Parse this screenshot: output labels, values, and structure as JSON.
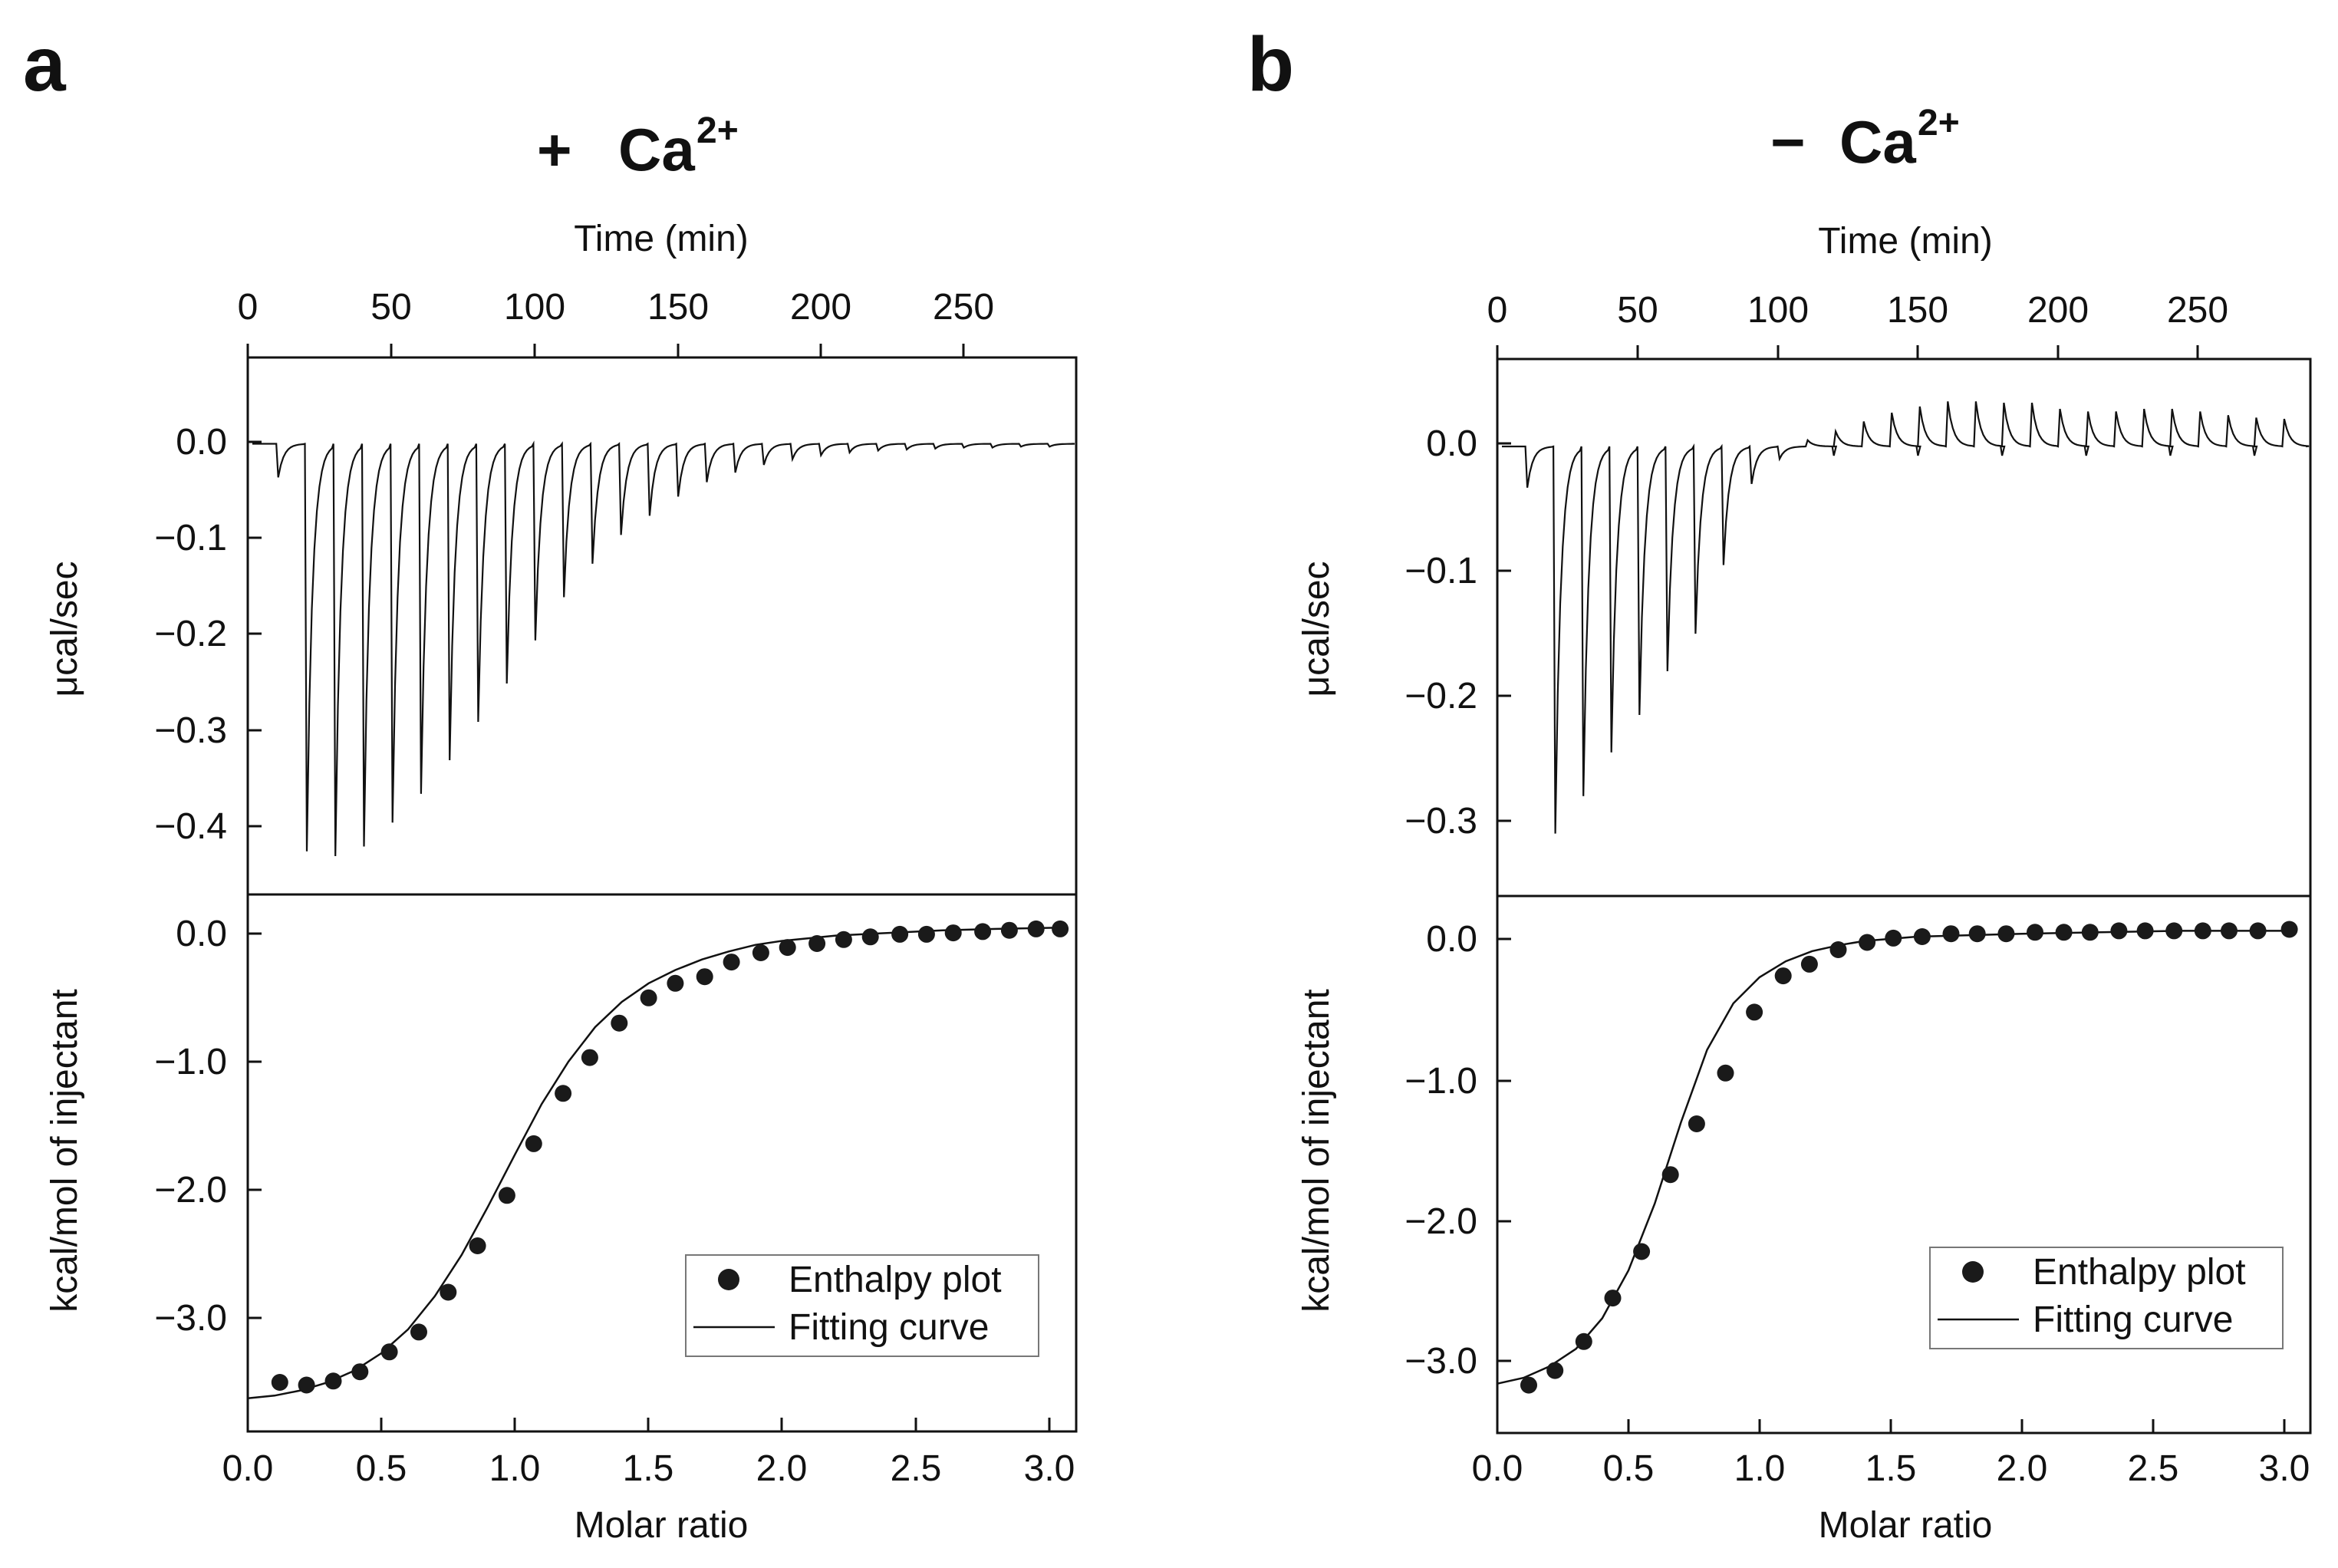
{
  "figure": {
    "colors": {
      "ink": "#111111",
      "background": "#ffffff",
      "marker": "#1a1a1a"
    },
    "panels": [
      {
        "letter": "a",
        "condition": {
          "sign": "+",
          "ion": "Ca",
          "superscript": "2+"
        },
        "top": {
          "xlabel": "Time (min)",
          "ylabel": "μcal/sec",
          "xticks": [
            "0",
            "50",
            "100",
            "150",
            "200",
            "250"
          ],
          "yticks": [
            "0.0",
            "−0.1",
            "−0.2",
            "−0.3",
            "−0.4"
          ]
        },
        "bottom": {
          "xlabel": "Molar ratio",
          "ylabel": "kcal/mol of injectant",
          "xticks": [
            "0.0",
            "0.5",
            "1.0",
            "1.5",
            "2.0",
            "2.5",
            "3.0"
          ],
          "yticks": [
            "0.0",
            "−1.0",
            "−2.0",
            "−3.0"
          ]
        },
        "legend": {
          "points_label": "Enthalpy plot",
          "curve_label": "Fitting curve"
        }
      },
      {
        "letter": "b",
        "condition": {
          "sign": "−",
          "ion": "Ca",
          "superscript": "2+"
        },
        "top": {
          "xlabel": "Time (min)",
          "ylabel": "μcal/sec",
          "xticks": [
            "0",
            "50",
            "100",
            "150",
            "200",
            "250"
          ],
          "yticks": [
            "0.0",
            "−0.1",
            "−0.2",
            "−0.3"
          ]
        },
        "bottom": {
          "xlabel": "Molar ratio",
          "ylabel": "kcal/mol of injectant",
          "xticks": [
            "0.0",
            "0.5",
            "1.0",
            "1.5",
            "2.0",
            "2.5",
            "3.0"
          ],
          "yticks": [
            "0.0",
            "−1.0",
            "−2.0",
            "−3.0"
          ]
        },
        "legend": {
          "points_label": "Enthalpy plot",
          "curve_label": "Fitting curve"
        }
      }
    ]
  },
  "chart_data": [
    {
      "panel": "a",
      "plot": "raw thermogram",
      "type": "line",
      "xlabel": "Time (min)",
      "ylabel": "μcal/sec",
      "xlim": [
        0,
        290
      ],
      "ylim": [
        -0.47,
        0.09
      ],
      "grid": false,
      "injections": {
        "time": [
          10,
          20,
          30,
          40,
          50,
          60,
          70,
          80,
          90,
          100,
          110,
          120,
          130,
          140,
          150,
          160,
          170,
          180,
          190,
          200,
          210,
          220,
          230,
          240,
          250,
          260,
          270,
          280
        ],
        "peak": [
          -0.035,
          -0.425,
          -0.43,
          -0.42,
          -0.395,
          -0.365,
          -0.33,
          -0.29,
          -0.25,
          -0.205,
          -0.16,
          -0.125,
          -0.095,
          -0.075,
          -0.055,
          -0.04,
          -0.03,
          -0.022,
          -0.016,
          -0.012,
          -0.009,
          -0.007,
          -0.006,
          -0.005,
          -0.004,
          -0.004,
          -0.003,
          -0.003
        ]
      }
    },
    {
      "panel": "a",
      "plot": "integrated heats",
      "type": "scatter",
      "xlabel": "Molar ratio",
      "ylabel": "kcal/mol of injectant",
      "xlim": [
        0,
        3.1
      ],
      "ylim": [
        -3.85,
        0.2
      ],
      "legend_position": "bottom-right",
      "series": [
        {
          "name": "Enthalpy plot",
          "x": [
            0.12,
            0.22,
            0.32,
            0.42,
            0.53,
            0.64,
            0.75,
            0.86,
            0.97,
            1.07,
            1.18,
            1.28,
            1.39,
            1.5,
            1.6,
            1.71,
            1.81,
            1.92,
            2.02,
            2.13,
            2.23,
            2.33,
            2.44,
            2.54,
            2.64,
            2.75,
            2.85,
            2.95,
            3.04
          ],
          "y": [
            -3.48,
            -3.5,
            -3.47,
            -3.4,
            -3.25,
            -3.1,
            -2.8,
            -2.45,
            -2.07,
            -1.68,
            -1.3,
            -1.03,
            -0.77,
            -0.58,
            -0.47,
            -0.42,
            -0.31,
            -0.24,
            -0.2,
            -0.17,
            -0.14,
            -0.12,
            -0.1,
            -0.1,
            -0.09,
            -0.08,
            -0.07,
            -0.06,
            -0.06
          ]
        },
        {
          "name": "Fitting curve",
          "type": "line",
          "x": [
            0.0,
            0.1,
            0.2,
            0.3,
            0.4,
            0.5,
            0.6,
            0.7,
            0.8,
            0.9,
            1.0,
            1.1,
            1.2,
            1.3,
            1.4,
            1.5,
            1.6,
            1.7,
            1.8,
            1.9,
            2.0,
            2.2,
            2.4,
            2.6,
            2.8,
            3.04
          ],
          "y": [
            -3.6,
            -3.58,
            -3.54,
            -3.48,
            -3.39,
            -3.26,
            -3.08,
            -2.83,
            -2.52,
            -2.15,
            -1.76,
            -1.38,
            -1.06,
            -0.8,
            -0.61,
            -0.47,
            -0.37,
            -0.29,
            -0.23,
            -0.18,
            -0.15,
            -0.11,
            -0.09,
            -0.07,
            -0.06,
            -0.05
          ]
        }
      ]
    },
    {
      "panel": "b",
      "plot": "raw thermogram",
      "type": "line",
      "xlabel": "Time (min)",
      "ylabel": "μcal/sec",
      "xlim": [
        0,
        290
      ],
      "ylim": [
        -0.36,
        0.07
      ],
      "grid": false,
      "injections": {
        "time": [
          10,
          20,
          30,
          40,
          50,
          60,
          70,
          80,
          90,
          100,
          110,
          120,
          130,
          140,
          150,
          160,
          170,
          180,
          190,
          200,
          210,
          220,
          230,
          240,
          250,
          260,
          270,
          280
        ],
        "peak": [
          -0.033,
          -0.31,
          -0.28,
          -0.245,
          -0.215,
          -0.18,
          -0.15,
          -0.095,
          -0.03,
          -0.01,
          0.005,
          0.012,
          0.02,
          0.027,
          0.032,
          0.036,
          0.036,
          0.035,
          0.035,
          0.03,
          0.028,
          0.028,
          0.03,
          0.03,
          0.028,
          0.025,
          0.023,
          0.022
        ]
      }
    },
    {
      "panel": "b",
      "plot": "integrated heats",
      "type": "scatter",
      "xlabel": "Molar ratio",
      "ylabel": "kcal/mol of injectant",
      "xlim": [
        0,
        3.1
      ],
      "ylim": [
        -3.5,
        0.2
      ],
      "legend_position": "bottom-right",
      "series": [
        {
          "name": "Enthalpy plot",
          "x": [
            0.12,
            0.22,
            0.33,
            0.44,
            0.55,
            0.66,
            0.76,
            0.87,
            0.98,
            1.09,
            1.19,
            1.3,
            1.41,
            1.51,
            1.62,
            1.73,
            1.83,
            1.94,
            2.05,
            2.16,
            2.26,
            2.37,
            2.47,
            2.58,
            2.69,
            2.79,
            2.9,
            3.02
          ],
          "y": [
            -3.17,
            -3.07,
            -2.87,
            -2.57,
            -2.25,
            -1.72,
            -1.37,
            -1.02,
            -0.6,
            -0.35,
            -0.27,
            -0.17,
            -0.12,
            -0.09,
            -0.08,
            -0.06,
            -0.06,
            -0.06,
            -0.05,
            -0.05,
            -0.05,
            -0.04,
            -0.04,
            -0.04,
            -0.04,
            -0.04,
            -0.04,
            -0.03
          ]
        },
        {
          "name": "Fitting curve",
          "type": "line",
          "x": [
            0.0,
            0.1,
            0.2,
            0.3,
            0.4,
            0.5,
            0.6,
            0.7,
            0.8,
            0.9,
            1.0,
            1.1,
            1.2,
            1.3,
            1.4,
            1.6,
            1.8,
            2.0,
            2.3,
            2.6,
            3.04
          ],
          "y": [
            -3.16,
            -3.12,
            -3.04,
            -2.92,
            -2.71,
            -2.38,
            -1.92,
            -1.36,
            -0.86,
            -0.54,
            -0.36,
            -0.25,
            -0.18,
            -0.14,
            -0.11,
            -0.08,
            -0.07,
            -0.06,
            -0.05,
            -0.04,
            -0.04
          ]
        }
      ]
    }
  ]
}
